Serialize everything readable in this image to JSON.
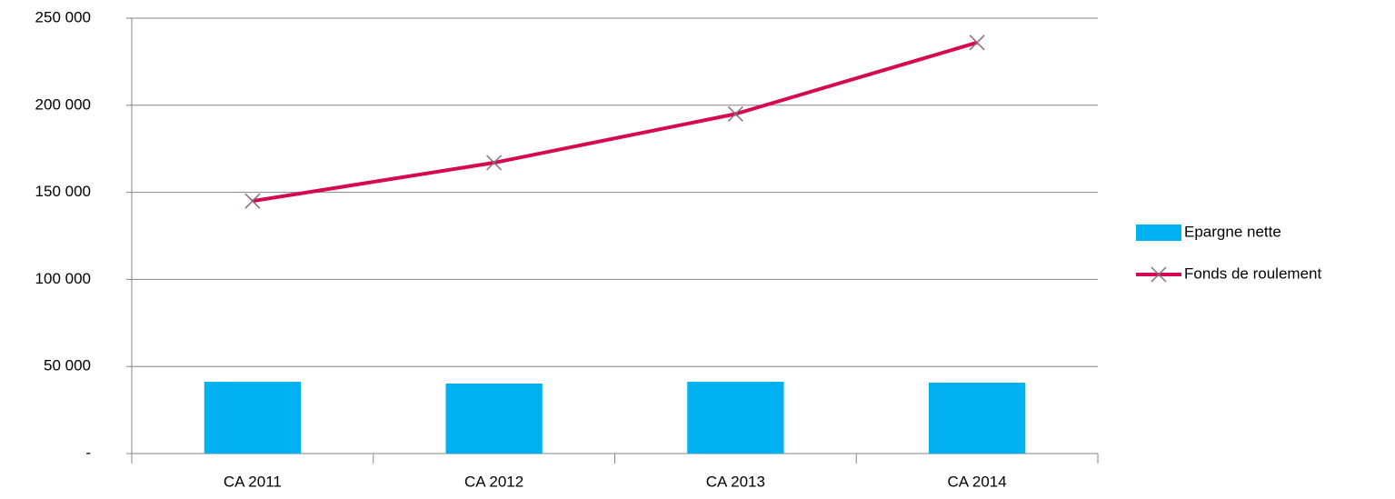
{
  "chart_data": {
    "type": "combo",
    "categories": [
      "CA 2011",
      "CA 2012",
      "CA 2013",
      "CA 2014"
    ],
    "series": [
      {
        "name": "Epargne nette",
        "type": "bar",
        "color": "#00b0f0",
        "values": [
          41200,
          40200,
          41200,
          40700
        ]
      },
      {
        "name": "Fonds de roulement",
        "type": "line",
        "color": "#d6084f",
        "marker_color": "#8a6a80",
        "values": [
          145000,
          167000,
          195000,
          236000
        ]
      }
    ],
    "ylim": [
      0,
      250000
    ],
    "yticks": [
      {
        "value": 0,
        "label": "-"
      },
      {
        "value": 50000,
        "label": "50 000"
      },
      {
        "value": 100000,
        "label": "100 000"
      },
      {
        "value": 150000,
        "label": "150 000"
      },
      {
        "value": 200000,
        "label": "200 000"
      },
      {
        "value": 250000,
        "label": "250 000"
      }
    ],
    "grid": true,
    "legend": "right"
  }
}
